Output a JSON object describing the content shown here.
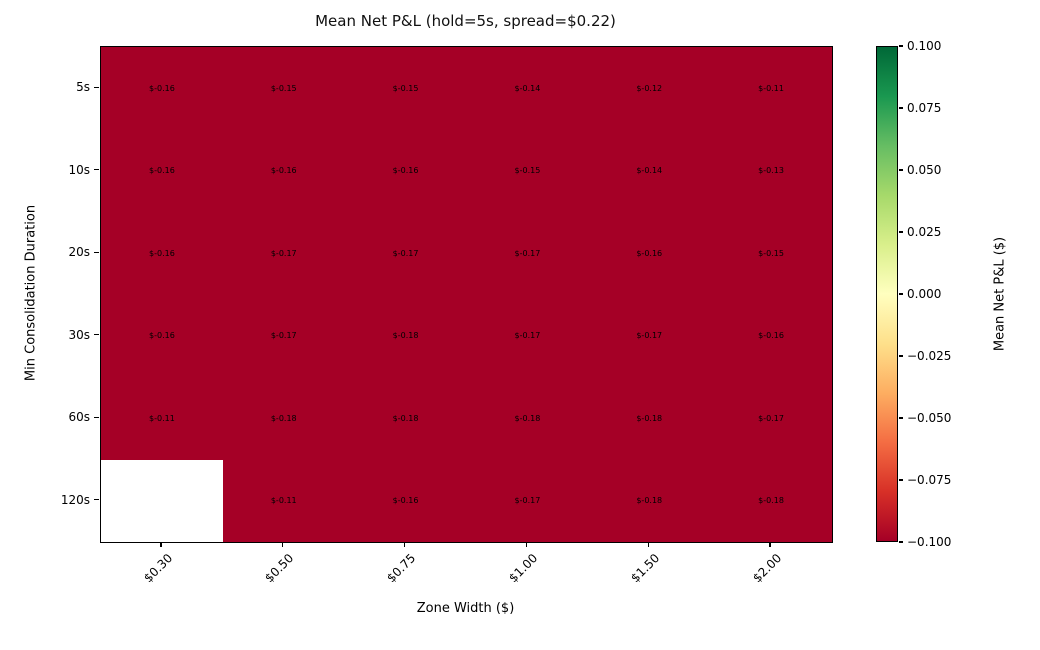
{
  "chart_data": {
    "type": "heatmap",
    "title": "Mean Net P&L (hold=5s, spread=$0.22)",
    "xlabel": "Zone Width ($)",
    "ylabel": "Min Consolidation Duration",
    "x_categories": [
      "$0.30",
      "$0.50",
      "$0.75",
      "$1.00",
      "$1.50",
      "$2.00"
    ],
    "y_categories": [
      "5s",
      "10s",
      "20s",
      "30s",
      "60s",
      "120s"
    ],
    "values": [
      [
        -0.16,
        -0.15,
        -0.15,
        -0.14,
        -0.12,
        -0.11
      ],
      [
        -0.16,
        -0.16,
        -0.16,
        -0.15,
        -0.14,
        -0.13
      ],
      [
        -0.16,
        -0.17,
        -0.17,
        -0.17,
        -0.16,
        -0.15
      ],
      [
        -0.16,
        -0.17,
        -0.18,
        -0.17,
        -0.17,
        -0.16
      ],
      [
        -0.11,
        -0.18,
        -0.18,
        -0.18,
        -0.18,
        -0.17
      ],
      [
        null,
        -0.11,
        -0.16,
        -0.17,
        -0.18,
        -0.18
      ]
    ],
    "cell_labels": [
      [
        "$-0.16",
        "$-0.15",
        "$-0.15",
        "$-0.14",
        "$-0.12",
        "$-0.11"
      ],
      [
        "$-0.16",
        "$-0.16",
        "$-0.16",
        "$-0.15",
        "$-0.14",
        "$-0.13"
      ],
      [
        "$-0.16",
        "$-0.17",
        "$-0.17",
        "$-0.17",
        "$-0.16",
        "$-0.15"
      ],
      [
        "$-0.16",
        "$-0.17",
        "$-0.18",
        "$-0.17",
        "$-0.17",
        "$-0.16"
      ],
      [
        "$-0.11",
        "$-0.18",
        "$-0.18",
        "$-0.18",
        "$-0.18",
        "$-0.17"
      ],
      [
        null,
        "$-0.11",
        "$-0.16",
        "$-0.17",
        "$-0.18",
        "$-0.18"
      ]
    ],
    "grid": false,
    "colorbar": {
      "label": "Mean Net P&L ($)",
      "tick_labels": [
        "0.100",
        "0.075",
        "0.050",
        "0.025",
        "0.000",
        "−0.025",
        "−0.050",
        "−0.075",
        "−0.100"
      ],
      "vmin": -0.1,
      "vmax": 0.1,
      "colormap": "RdYlGn",
      "gradient_stops_bottom_to_top": [
        "#a50026",
        "#d73027",
        "#f46d43",
        "#fdae61",
        "#fee08b",
        "#ffffbf",
        "#d9ef8b",
        "#a6d96a",
        "#66bd63",
        "#1a9850",
        "#006837"
      ]
    },
    "colors": {
      "saturated_cell": "#a50026",
      "missing_cell": "#ffffff",
      "cell_text": "#000000"
    }
  }
}
